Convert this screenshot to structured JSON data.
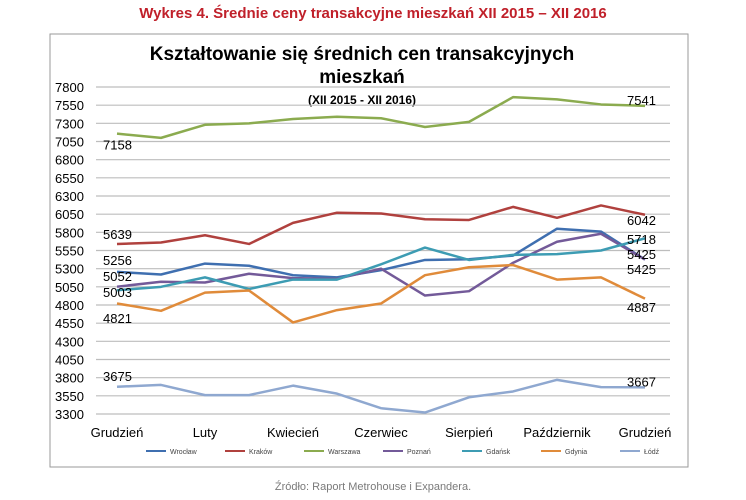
{
  "heading": "Wykres 4. Średnie ceny transakcyjne mieszkań XII 2015 – XII 2016",
  "source": "Źródło: Raport Metrohouse i Expandera.",
  "chart_data": {
    "type": "line",
    "title_line1": "Kształtowanie się średnich cen transakcyjnych",
    "title_line2": "mieszkań",
    "subtitle": "(XII 2015 - XII 2016)",
    "ylim": [
      3300,
      7800
    ],
    "yticks": [
      3300,
      3550,
      3800,
      4050,
      4300,
      4550,
      4800,
      5050,
      5300,
      5550,
      5800,
      6050,
      6300,
      6550,
      6800,
      7050,
      7300,
      7550,
      7800
    ],
    "x_tick_labels": [
      "Grudzień",
      "Luty",
      "Kwiecień",
      "Czerwiec",
      "Sierpień",
      "Październik",
      "Grudzień"
    ],
    "x_count": 13,
    "grid": "horizontal",
    "legend_position": "bottom",
    "series": [
      {
        "name": "Wrocław",
        "color": "#3f6fb0",
        "values": [
          5256,
          5220,
          5370,
          5340,
          5210,
          5180,
          5280,
          5420,
          5430,
          5480,
          5850,
          5810,
          5425
        ],
        "labels": [
          "5256",
          "5425"
        ]
      },
      {
        "name": "Kraków",
        "color": "#b0413e",
        "values": [
          5639,
          5660,
          5760,
          5640,
          5930,
          6070,
          6060,
          5980,
          5970,
          6150,
          6000,
          6170,
          6042
        ],
        "labels": [
          "5639",
          "6042"
        ]
      },
      {
        "name": "Warszawa",
        "color": "#8bab4f",
        "values": [
          7158,
          7100,
          7280,
          7300,
          7360,
          7390,
          7370,
          7250,
          7320,
          7660,
          7630,
          7560,
          7541
        ],
        "labels": [
          "7158",
          "7541"
        ]
      },
      {
        "name": "Poznań",
        "color": "#735a99",
        "values": [
          5052,
          5120,
          5110,
          5230,
          5170,
          5160,
          5300,
          4930,
          4990,
          5380,
          5670,
          5780,
          5425
        ],
        "labels": [
          "5052",
          "5425"
        ]
      },
      {
        "name": "Gdańsk",
        "color": "#3d9cb3",
        "values": [
          5003,
          5050,
          5180,
          5020,
          5150,
          5150,
          5360,
          5590,
          5420,
          5490,
          5500,
          5550,
          5718
        ],
        "labels": [
          "5003",
          "5718"
        ]
      },
      {
        "name": "Gdynia",
        "color": "#e08b3a",
        "values": [
          4821,
          4720,
          4970,
          5000,
          4560,
          4730,
          4820,
          5210,
          5320,
          5350,
          5150,
          5180,
          4887
        ],
        "labels": [
          "4821",
          "4887"
        ]
      },
      {
        "name": "Łódź",
        "color": "#8fa8d0",
        "values": [
          3675,
          3700,
          3560,
          3560,
          3690,
          3580,
          3380,
          3320,
          3530,
          3610,
          3770,
          3670,
          3667
        ],
        "labels": [
          "3675",
          "3667"
        ]
      }
    ]
  }
}
